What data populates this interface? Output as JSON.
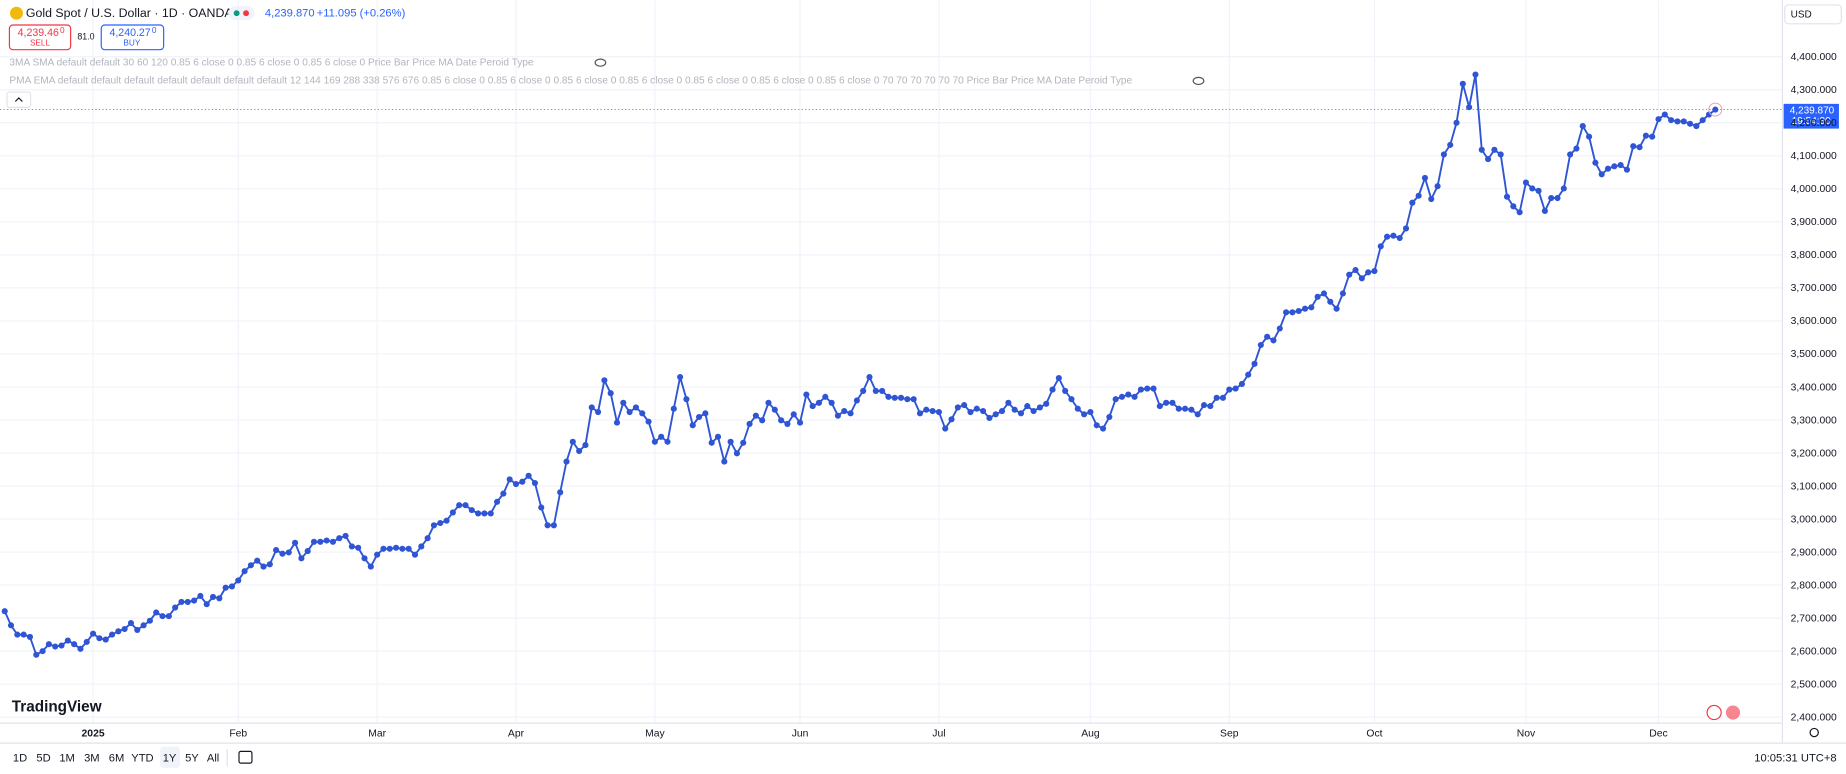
{
  "header": {
    "symbol": "Gold Spot / U.S. Dollar · 1D · OANDA",
    "price": "4,239.870",
    "change": "+11.095 (+0.26%)",
    "sell_price": "4,239.46",
    "sell_price_sup": "0",
    "sell": "SELL",
    "spread": "81.0",
    "buy_price": "4,240.27",
    "buy_price_sup": "0",
    "buy": "BUY"
  },
  "indicators": [
    "3MA SMA default default 30 60 120 0.85 6 close 0 0.85 6 close 0 0.85 6 close 0 Price Bar Price MA Date Peroid Type",
    "PMA EMA default default default default default default default 12 144 169 288 338 576 676 0.85 6 close 0 0.85 6 close 0 0.85 6 close 0 0.85 6 close 0 0.85 6 close 0 0.85 6 close 0 0.85 6 close 0 70 70 70 70 70 70 Price Bar Price MA Date Peroid Type"
  ],
  "logo": "TradingView",
  "currency": "USD",
  "price_tag": {
    "price": "4,239.870",
    "countdown": "19:54:30"
  },
  "toolbar": {
    "ranges": [
      "1D",
      "5D",
      "1M",
      "3M",
      "6M",
      "YTD",
      "1Y",
      "5Y",
      "All"
    ],
    "clock": "10:05:31 UTC+8"
  },
  "chart_data": {
    "type": "line",
    "color": "#2f55d4",
    "grid": true,
    "categories": [
      null,
      null,
      null,
      null,
      null,
      null,
      null,
      null,
      null,
      null,
      null,
      null,
      null,
      null,
      "2025",
      null,
      null,
      null,
      null,
      null,
      null,
      null,
      null,
      null,
      null,
      null,
      null,
      null,
      null,
      null,
      null,
      null,
      null,
      null,
      null,
      null,
      null,
      "Feb",
      null,
      null,
      null,
      null,
      null,
      null,
      null,
      null,
      null,
      null,
      null,
      null,
      null,
      null,
      null,
      null,
      null,
      null,
      null,
      null,
      null,
      "Mar",
      null,
      null,
      null,
      null,
      null,
      null,
      null,
      null,
      null,
      null,
      null,
      null,
      null,
      null,
      null,
      null,
      null,
      null,
      null,
      null,
      null,
      "Apr",
      null,
      null,
      null,
      null,
      null,
      null,
      null,
      null,
      null,
      null,
      null,
      null,
      null,
      null,
      null,
      null,
      null,
      null,
      null,
      null,
      null,
      "May",
      null,
      null,
      null,
      null,
      null,
      null,
      null,
      null,
      null,
      null,
      null,
      null,
      null,
      null,
      null,
      null,
      null,
      null,
      null,
      null,
      null,
      null,
      "Jun",
      null,
      null,
      null,
      null,
      null,
      null,
      null,
      null,
      null,
      null,
      null,
      null,
      null,
      null,
      null,
      null,
      null,
      null,
      null,
      null,
      null,
      "Jul",
      null,
      null,
      null,
      null,
      null,
      null,
      null,
      null,
      null,
      null,
      null,
      null,
      null,
      null,
      null,
      null,
      null,
      null,
      null,
      null,
      null,
      null,
      null,
      "Aug",
      null,
      null,
      null,
      null,
      null,
      null,
      null,
      null,
      null,
      null,
      null,
      null,
      null,
      null,
      null,
      null,
      null,
      null,
      null,
      null,
      null,
      "Sep",
      null,
      null,
      null,
      null,
      null,
      null,
      null,
      null,
      null,
      null,
      null,
      null,
      null,
      null,
      null,
      null,
      null,
      null,
      null,
      null,
      null,
      null,
      "Oct",
      null,
      null,
      null,
      null,
      null,
      null,
      null,
      null,
      null,
      null,
      null,
      null,
      null,
      null,
      null,
      null,
      null,
      null,
      null,
      null,
      null,
      null,
      null,
      "Nov",
      null,
      null,
      null,
      null,
      null,
      null,
      null,
      null,
      null,
      null,
      null,
      null,
      null,
      null,
      null,
      null,
      null,
      null,
      null,
      null,
      "Dec",
      null,
      null,
      null,
      null,
      null,
      null,
      null,
      null,
      null
    ],
    "values": [
      2721,
      2678,
      2650,
      2650,
      2643,
      2589,
      2600,
      2621,
      2614,
      2617,
      2632,
      2621,
      2607,
      2628,
      2653,
      2639,
      2635,
      2650,
      2660,
      2667,
      2685,
      2664,
      2678,
      2692,
      2717,
      2706,
      2706,
      2732,
      2749,
      2749,
      2753,
      2767,
      2742,
      2764,
      2760,
      2792,
      2796,
      2814,
      2842,
      2860,
      2874,
      2856,
      2863,
      2906,
      2895,
      2899,
      2928,
      2881,
      2903,
      2931,
      2931,
      2935,
      2931,
      2942,
      2949,
      2917,
      2913,
      2881,
      2856,
      2892,
      2910,
      2910,
      2913,
      2910,
      2910,
      2892,
      2917,
      2942,
      2981,
      2988,
      2995,
      3020,
      3042,
      3042,
      3027,
      3017,
      3017,
      3017,
      3052,
      3077,
      3120,
      3106,
      3113,
      3131,
      3109,
      3035,
      2981,
      2981,
      3081,
      3174,
      3234,
      3206,
      3224,
      3338,
      3324,
      3420,
      3381,
      3292,
      3352,
      3324,
      3338,
      3320,
      3295,
      3234,
      3249,
      3234,
      3334,
      3430,
      3363,
      3284,
      3309,
      3320,
      3231,
      3249,
      3174,
      3234,
      3199,
      3231,
      3288,
      3313,
      3299,
      3352,
      3331,
      3299,
      3288,
      3317,
      3292,
      3377,
      3342,
      3352,
      3370,
      3352,
      3313,
      3327,
      3320,
      3359,
      3388,
      3430,
      3388,
      3388,
      3370,
      3367,
      3367,
      3363,
      3363,
      3320,
      3331,
      3327,
      3324,
      3274,
      3302,
      3338,
      3345,
      3324,
      3334,
      3327,
      3306,
      3317,
      3327,
      3352,
      3331,
      3320,
      3342,
      3327,
      3338,
      3349,
      3392,
      3427,
      3388,
      3363,
      3334,
      3317,
      3324,
      3284,
      3274,
      3309,
      3363,
      3370,
      3377,
      3370,
      3392,
      3395,
      3395,
      3342,
      3352,
      3352,
      3334,
      3334,
      3331,
      3317,
      3345,
      3342,
      3367,
      3367,
      3392,
      3395,
      3409,
      3437,
      3470,
      3527,
      3552,
      3541,
      3577,
      3626,
      3626,
      3630,
      3637,
      3641,
      3673,
      3683,
      3658,
      3637,
      3683,
      3740,
      3754,
      3729,
      3747,
      3751,
      3826,
      3855,
      3858,
      3851,
      3880,
      3958,
      3979,
      4033,
      3969,
      4008,
      4104,
      4133,
      4200,
      4318,
      4247,
      4346,
      4118,
      4090,
      4118,
      4104,
      3976,
      3947,
      3929,
      4019,
      4001,
      3994,
      3933,
      3972,
      3972,
      4001,
      4104,
      4122,
      4190,
      4158,
      4079,
      4044,
      4061,
      4068,
      4072,
      4058,
      4129,
      4126,
      4161,
      4158,
      4211,
      4225,
      4208,
      4204,
      4204,
      4197,
      4190,
      4208,
      4225,
      4239.87
    ],
    "ylim": [
      2382,
      4571
    ],
    "yticks": [
      {
        "value": 2400,
        "label": "2,400.000"
      },
      {
        "value": 2500,
        "label": "2,500.000"
      },
      {
        "value": 2600,
        "label": "2,600.000"
      },
      {
        "value": 2700,
        "label": "2,700.000"
      },
      {
        "value": 2800,
        "label": "2,800.000"
      },
      {
        "value": 2900,
        "label": "2,900.000"
      },
      {
        "value": 3000,
        "label": "3,000.000"
      },
      {
        "value": 3100,
        "label": "3,100.000"
      },
      {
        "value": 3200,
        "label": "3,200.000"
      },
      {
        "value": 3300,
        "label": "3,300.000"
      },
      {
        "value": 3400,
        "label": "3,400.000"
      },
      {
        "value": 3500,
        "label": "3,500.000"
      },
      {
        "value": 3600,
        "label": "3,600.000"
      },
      {
        "value": 3700,
        "label": "3,700.000"
      },
      {
        "value": 3800,
        "label": "3,800.000"
      },
      {
        "value": 3900,
        "label": "3,900.000"
      },
      {
        "value": 4000,
        "label": "4,000.000"
      },
      {
        "value": 4100,
        "label": "4,100.000"
      },
      {
        "value": 4200,
        "label": "4,200.000"
      },
      {
        "value": 4300,
        "label": "4,300.000"
      },
      {
        "value": 4400,
        "label": "4,400.000"
      }
    ]
  }
}
